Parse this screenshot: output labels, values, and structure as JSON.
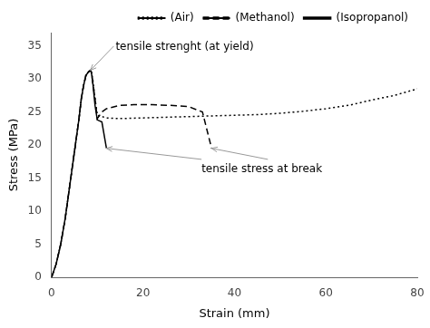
{
  "chart_data": {
    "type": "line",
    "xlabel": "Strain (mm)",
    "ylabel": "Stress (MPa)",
    "xlim": [
      0,
      80
    ],
    "ylim": [
      0,
      37
    ],
    "xticks": [
      0,
      20,
      40,
      60,
      80
    ],
    "yticks": [
      0,
      5,
      10,
      15,
      20,
      25,
      30,
      35
    ],
    "grid": false,
    "legend": "upper right",
    "annotations": [
      "tensile strenght (at yield)",
      "tensile stress at break"
    ],
    "series": [
      {
        "name": "(Air)",
        "color": "#000000",
        "line_style": "dotted",
        "x": [
          0,
          0.5,
          1,
          2,
          3,
          4,
          5,
          6,
          6.5,
          7,
          7.5,
          8,
          8.3,
          8.5,
          8.7,
          9,
          9.5,
          10,
          12,
          15,
          20,
          25,
          30,
          35,
          40,
          45,
          50,
          55,
          60,
          65,
          70,
          75,
          80
        ],
        "values": [
          0,
          1,
          2,
          5,
          9,
          14,
          19,
          24,
          27,
          29,
          30.5,
          31.0,
          31.2,
          31.3,
          31.0,
          30.0,
          27,
          24.5,
          24.1,
          24.0,
          24.1,
          24.2,
          24.3,
          24.4,
          24.5,
          24.6,
          24.8,
          25.1,
          25.5,
          26.0,
          26.8,
          27.5,
          28.5
        ]
      },
      {
        "name": "(Methanol)",
        "color": "#000000",
        "line_style": "dashed",
        "x": [
          0,
          0.5,
          1,
          2,
          3,
          4,
          5,
          6,
          6.5,
          7,
          7.5,
          8,
          8.3,
          8.5,
          8.7,
          9,
          9.5,
          10,
          11,
          12,
          15,
          18,
          22,
          26,
          30,
          33,
          35
        ],
        "values": [
          0,
          1,
          2,
          5,
          9,
          14,
          19,
          24,
          27,
          29,
          30.5,
          31.0,
          31.2,
          31.3,
          31.0,
          29.5,
          27,
          24.0,
          25.0,
          25.5,
          26.0,
          26.1,
          26.1,
          26.0,
          25.8,
          25.0,
          19.5
        ]
      },
      {
        "name": "(Isopropanol)",
        "color": "#000000",
        "line_style": "solid",
        "x": [
          0,
          0.5,
          1,
          2,
          3,
          4,
          5,
          6,
          6.5,
          7,
          7.5,
          8,
          8.3,
          8.5,
          8.7,
          9,
          9.5,
          10,
          11,
          12
        ],
        "values": [
          0,
          1,
          2,
          5,
          9,
          14,
          19,
          24,
          27,
          29,
          30.5,
          31.0,
          31.2,
          31.3,
          31.0,
          29.5,
          26,
          23.8,
          23.5,
          19.5
        ]
      }
    ]
  }
}
